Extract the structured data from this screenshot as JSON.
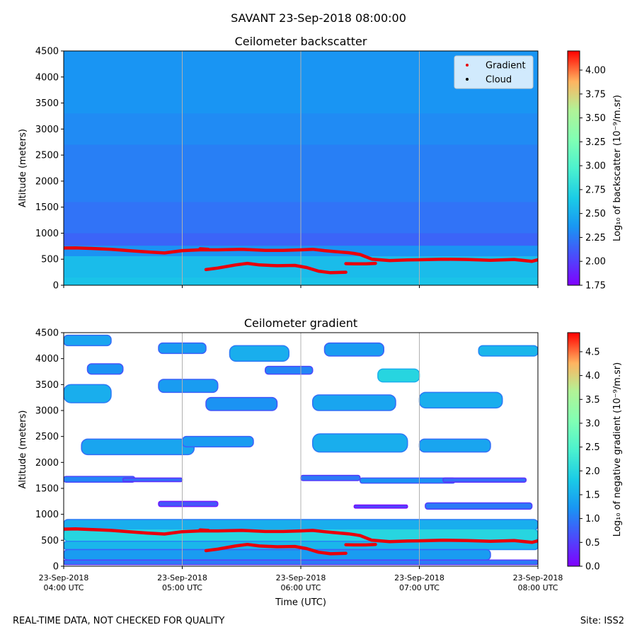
{
  "figure": {
    "suptitle": "SAVANT 23-Sep-2018 08:00:00",
    "footer_left": "REAL-TIME DATA, NOT CHECKED FOR QUALITY",
    "footer_right": "Site: ISS2"
  },
  "chart_data": [
    {
      "type": "heatmap",
      "title": "Ceilometer backscatter",
      "xlabel": "",
      "ylabel": "Altitude (meters)",
      "ylim": [
        0,
        4500
      ],
      "xlim_hours": [
        4,
        8
      ],
      "y_ticks": [
        "0",
        "500",
        "1000",
        "1500",
        "2000",
        "2500",
        "3000",
        "3500",
        "4000",
        "4500"
      ],
      "x_tick_hours": [
        4,
        5,
        6,
        7,
        8
      ],
      "x_tick_labels": [],
      "x_gridlines_hours": [
        5,
        6,
        7
      ],
      "colorbar": {
        "label": "Log₁₀ of backscatter (10⁻⁹/m.sr)",
        "range": [
          1.75,
          4.2
        ],
        "ticks": [
          "1.75",
          "2.00",
          "2.25",
          "2.50",
          "2.75",
          "3.00",
          "3.25",
          "3.50",
          "3.75",
          "4.00"
        ]
      },
      "legend": {
        "position": "top-right",
        "entries": [
          {
            "label": "Gradient",
            "color": "#e8000b"
          },
          {
            "label": "Cloud",
            "color": "#000000"
          }
        ]
      },
      "layers": [
        {
          "from": 0,
          "to": 150,
          "value": 2.62
        },
        {
          "from": 150,
          "to": 560,
          "value": 2.58
        },
        {
          "from": 560,
          "to": 760,
          "value": 2.35
        },
        {
          "from": 760,
          "to": 1000,
          "value": 2.16
        },
        {
          "from": 1000,
          "to": 1600,
          "value": 2.22
        },
        {
          "from": 1600,
          "to": 2700,
          "value": 2.27
        },
        {
          "from": 2700,
          "to": 3300,
          "value": 2.32
        },
        {
          "from": 3300,
          "to": 4500,
          "value": 2.36
        }
      ],
      "series": [
        {
          "name": "Gradient (upper)",
          "color": "#e8000b",
          "x_hours": [
            4.0,
            4.1,
            4.25,
            4.4,
            4.55,
            4.7,
            4.85,
            5.0,
            5.15,
            5.3,
            5.5,
            5.7,
            5.85,
            6.0,
            6.1,
            6.2,
            6.3,
            6.4,
            6.45,
            6.5,
            6.6,
            6.75,
            6.9,
            7.0,
            7.2,
            7.4,
            7.6,
            7.8,
            7.95,
            8.0
          ],
          "altitude_m": [
            715,
            718,
            705,
            690,
            665,
            640,
            620,
            665,
            680,
            680,
            690,
            670,
            670,
            680,
            690,
            665,
            645,
            625,
            610,
            590,
            500,
            475,
            485,
            490,
            500,
            495,
            480,
            495,
            460,
            490
          ]
        },
        {
          "name": "Gradient (lower)",
          "color": "#e8000b",
          "x_hours": [
            5.2,
            5.3,
            5.45,
            5.55,
            5.65,
            5.8,
            5.95,
            6.05,
            6.15,
            6.25,
            6.38
          ],
          "altitude_m": [
            300,
            330,
            390,
            420,
            390,
            375,
            380,
            340,
            270,
            240,
            250
          ]
        },
        {
          "name": "Gradient (segment)",
          "color": "#e8000b",
          "x_hours": [
            6.38,
            6.45,
            6.55,
            6.63
          ],
          "altitude_m": [
            415,
            410,
            410,
            420
          ]
        },
        {
          "name": "Gradient (blip)",
          "color": "#e8000b",
          "x_hours": [
            5.15,
            5.22
          ],
          "altitude_m": [
            700,
            690
          ]
        }
      ]
    },
    {
      "type": "heatmap",
      "title": "Ceilometer gradient",
      "xlabel": "Time (UTC)",
      "ylabel": "Altitude (meters)",
      "ylim": [
        0,
        4500
      ],
      "xlim_hours": [
        4,
        8
      ],
      "y_ticks": [
        "0",
        "500",
        "1000",
        "1500",
        "2000",
        "2500",
        "3000",
        "3500",
        "4000",
        "4500"
      ],
      "x_tick_hours": [
        4,
        5,
        6,
        7,
        8
      ],
      "x_tick_labels": [
        [
          "23-Sep-2018",
          "04:00 UTC"
        ],
        [
          "23-Sep-2018",
          "05:00 UTC"
        ],
        [
          "23-Sep-2018",
          "06:00 UTC"
        ],
        [
          "23-Sep-2018",
          "07:00 UTC"
        ],
        [
          "23-Sep-2018",
          "08:00 UTC"
        ]
      ],
      "x_gridlines_hours": [
        5,
        6,
        7
      ],
      "colorbar": {
        "label": "Log₁₀ of negative gradient (10⁻⁹/m.sr)",
        "range": [
          0,
          4.9
        ],
        "ticks": [
          "0.0",
          "0.5",
          "1.0",
          "1.5",
          "2.0",
          "2.5",
          "3.0",
          "3.5",
          "4.0",
          "4.5"
        ]
      },
      "layers": [
        {
          "t0": 4.0,
          "t1": 8.0,
          "alt0": 700,
          "alt1": 900,
          "value": 1.5
        },
        {
          "t0": 4.0,
          "t1": 8.0,
          "alt0": 480,
          "alt1": 720,
          "value": 2.0
        },
        {
          "t0": 4.0,
          "t1": 8.0,
          "alt0": 320,
          "alt1": 480,
          "value": 1.6
        },
        {
          "t0": 4.0,
          "t1": 7.6,
          "alt0": 120,
          "alt1": 320,
          "value": 1.3
        },
        {
          "t0": 4.0,
          "t1": 8.0,
          "alt0": 30,
          "alt1": 120,
          "value": 1.0
        },
        {
          "t0": 4.15,
          "t1": 5.1,
          "alt0": 2150,
          "alt1": 2450,
          "value": 1.4
        },
        {
          "t0": 5.0,
          "t1": 5.6,
          "alt0": 2300,
          "alt1": 2500,
          "value": 1.3
        },
        {
          "t0": 6.1,
          "t1": 6.9,
          "alt0": 2200,
          "alt1": 2550,
          "value": 1.5
        },
        {
          "t0": 7.0,
          "t1": 7.6,
          "alt0": 2200,
          "alt1": 2450,
          "value": 1.4
        },
        {
          "t0": 4.0,
          "t1": 4.6,
          "alt0": 1620,
          "alt1": 1730,
          "value": 1.1
        },
        {
          "t0": 4.5,
          "t1": 5.0,
          "alt0": 1630,
          "alt1": 1700,
          "value": 0.9
        },
        {
          "t0": 6.0,
          "t1": 6.5,
          "alt0": 1650,
          "alt1": 1750,
          "value": 1.0
        },
        {
          "t0": 6.5,
          "t1": 7.3,
          "alt0": 1600,
          "alt1": 1700,
          "value": 1.2
        },
        {
          "t0": 7.2,
          "t1": 7.9,
          "alt0": 1620,
          "alt1": 1700,
          "value": 0.9
        },
        {
          "t0": 4.8,
          "t1": 5.3,
          "alt0": 1150,
          "alt1": 1250,
          "value": 0.7
        },
        {
          "t0": 6.45,
          "t1": 6.9,
          "alt0": 1120,
          "alt1": 1180,
          "value": 0.6
        },
        {
          "t0": 7.05,
          "t1": 7.95,
          "alt0": 1100,
          "alt1": 1220,
          "value": 1.0
        },
        {
          "t0": 4.0,
          "t1": 4.4,
          "alt0": 3150,
          "alt1": 3500,
          "value": 1.5
        },
        {
          "t0": 4.8,
          "t1": 5.3,
          "alt0": 3350,
          "alt1": 3600,
          "value": 1.3
        },
        {
          "t0": 5.2,
          "t1": 5.8,
          "alt0": 3000,
          "alt1": 3250,
          "value": 1.2
        },
        {
          "t0": 6.1,
          "t1": 6.8,
          "alt0": 3000,
          "alt1": 3300,
          "value": 1.4
        },
        {
          "t0": 7.0,
          "t1": 7.7,
          "alt0": 3050,
          "alt1": 3350,
          "value": 1.5
        },
        {
          "t0": 6.65,
          "t1": 7.0,
          "alt0": 3550,
          "alt1": 3800,
          "value": 2.0
        },
        {
          "t0": 4.0,
          "t1": 4.4,
          "alt0": 4250,
          "alt1": 4450,
          "value": 1.4
        },
        {
          "t0": 4.8,
          "t1": 5.2,
          "alt0": 4100,
          "alt1": 4300,
          "value": 1.3
        },
        {
          "t0": 5.4,
          "t1": 5.9,
          "alt0": 3950,
          "alt1": 4250,
          "value": 1.5
        },
        {
          "t0": 6.2,
          "t1": 6.7,
          "alt0": 4050,
          "alt1": 4300,
          "value": 1.3
        },
        {
          "t0": 7.5,
          "t1": 8.0,
          "alt0": 4050,
          "alt1": 4250,
          "value": 1.6
        },
        {
          "t0": 4.2,
          "t1": 4.5,
          "alt0": 3700,
          "alt1": 3900,
          "value": 1.2
        },
        {
          "t0": 5.7,
          "t1": 6.1,
          "alt0": 3700,
          "alt1": 3850,
          "value": 1.1
        }
      ],
      "series": [
        {
          "name": "Gradient (upper)",
          "color": "#e8000b",
          "x_hours": [
            4.0,
            4.1,
            4.25,
            4.4,
            4.55,
            4.7,
            4.85,
            5.0,
            5.15,
            5.3,
            5.5,
            5.7,
            5.85,
            6.0,
            6.1,
            6.2,
            6.3,
            6.4,
            6.45,
            6.5,
            6.6,
            6.75,
            6.9,
            7.0,
            7.2,
            7.4,
            7.6,
            7.8,
            7.95,
            8.0
          ],
          "altitude_m": [
            715,
            718,
            705,
            690,
            665,
            640,
            620,
            665,
            680,
            680,
            690,
            670,
            670,
            680,
            690,
            665,
            645,
            625,
            610,
            590,
            500,
            475,
            485,
            490,
            500,
            495,
            480,
            495,
            460,
            490
          ]
        },
        {
          "name": "Gradient (lower)",
          "color": "#e8000b",
          "x_hours": [
            5.2,
            5.3,
            5.45,
            5.55,
            5.65,
            5.8,
            5.95,
            6.05,
            6.15,
            6.25,
            6.38
          ],
          "altitude_m": [
            300,
            330,
            390,
            420,
            390,
            375,
            380,
            340,
            270,
            240,
            250
          ]
        },
        {
          "name": "Gradient (segment)",
          "color": "#e8000b",
          "x_hours": [
            6.38,
            6.45,
            6.55,
            6.63
          ],
          "altitude_m": [
            415,
            410,
            410,
            420
          ]
        },
        {
          "name": "Gradient (blip)",
          "color": "#e8000b",
          "x_hours": [
            5.15,
            5.22
          ],
          "altitude_m": [
            700,
            690
          ]
        }
      ]
    }
  ]
}
